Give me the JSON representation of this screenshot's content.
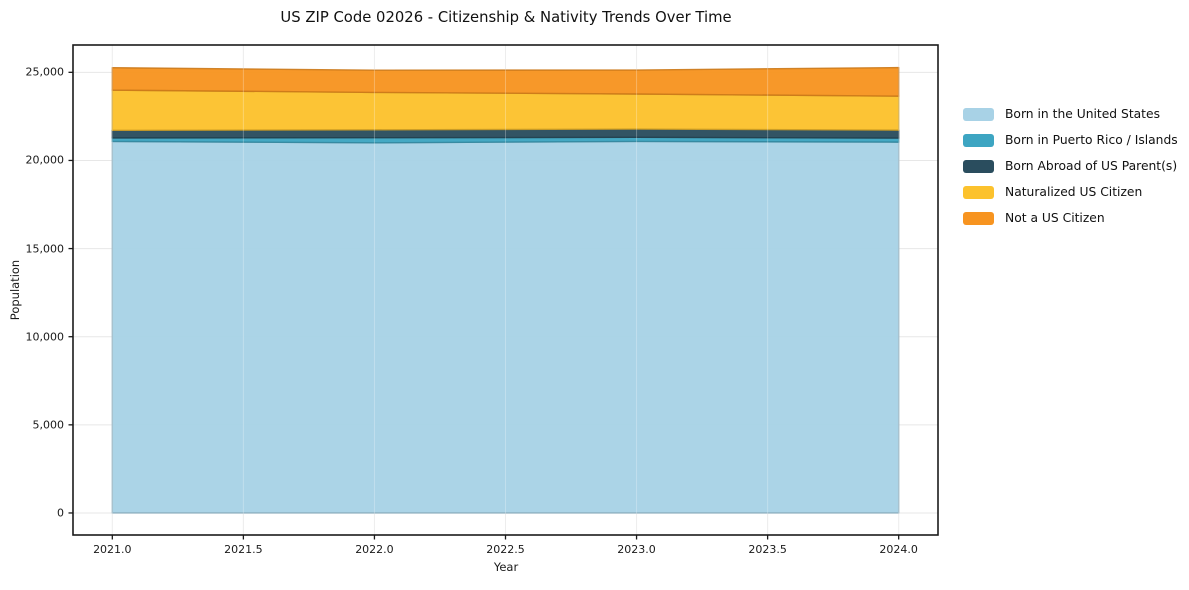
{
  "title": "US ZIP Code 02026 - Citizenship & Nativity Trends Over Time",
  "chart_data": {
    "type": "area",
    "stacked": true,
    "title": "US ZIP Code 02026 - Citizenship & Nativity Trends Over Time",
    "xlabel": "Year",
    "ylabel": "Population",
    "x": [
      2021,
      2022,
      2023,
      2024
    ],
    "series": [
      {
        "name": "Born in the United States",
        "color": "#a8d2e6",
        "values": [
          21080,
          21000,
          21080,
          21040
        ]
      },
      {
        "name": "Born in Puerto Rico / Islands",
        "color": "#3da5c2",
        "values": [
          200,
          290,
          230,
          230
        ]
      },
      {
        "name": "Born Abroad of US Parent(s)",
        "color": "#2a4d5e",
        "values": [
          430,
          450,
          470,
          450
        ]
      },
      {
        "name": "Naturalized US Citizen",
        "color": "#fcc22d",
        "values": [
          2280,
          2120,
          1990,
          1930
        ]
      },
      {
        "name": "Not a US Citizen",
        "color": "#f79420",
        "values": [
          1270,
          1260,
          1360,
          1620
        ]
      }
    ],
    "xlim": [
      2020.85,
      2024.15
    ],
    "ylim": [
      -1250,
      26550
    ],
    "xticks": [
      2021.0,
      2021.5,
      2022.0,
      2022.5,
      2023.0,
      2023.5,
      2024.0
    ],
    "xtick_labels": [
      "2021.0",
      "2021.5",
      "2022.0",
      "2022.5",
      "2023.0",
      "2023.5",
      "2024.0"
    ],
    "yticks": [
      0,
      5000,
      10000,
      15000,
      20000,
      25000
    ],
    "ytick_labels": [
      "0",
      "5,000",
      "10,000",
      "15,000",
      "20,000",
      "25,000"
    ],
    "grid": true,
    "legend_position": "right",
    "colors": {
      "grid": "#e7e7e7",
      "spine": "#1a1a1a",
      "text": "#1a1a1a"
    }
  }
}
